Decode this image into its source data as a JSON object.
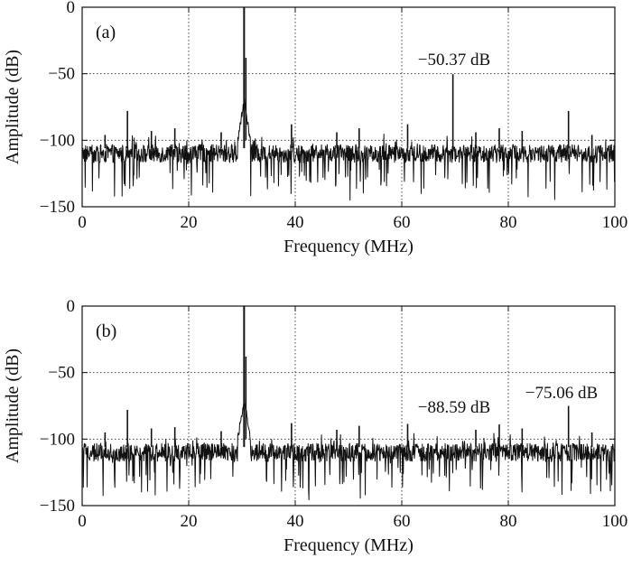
{
  "chart_data": [
    {
      "type": "line",
      "panel_label": "(a)",
      "xlabel": "Frequency (MHz)",
      "ylabel": "Amplitude (dB)",
      "xlim": [
        0,
        100
      ],
      "ylim": [
        -150,
        0
      ],
      "xticks": [
        0,
        20,
        40,
        60,
        80,
        100
      ],
      "yticks": [
        0,
        -50,
        -100,
        -150
      ],
      "grid": true,
      "noise_floor_db": -110,
      "peaks": [
        {
          "x": 30.4,
          "y": 0
        },
        {
          "x": 69.6,
          "y": -50.37
        },
        {
          "x": 8.5,
          "y": -78
        },
        {
          "x": 91.3,
          "y": -78
        },
        {
          "x": 61.1,
          "y": -88
        },
        {
          "x": 39.3,
          "y": -88
        },
        {
          "x": 52.0,
          "y": -91
        },
        {
          "x": 78.3,
          "y": -91
        },
        {
          "x": 17.4,
          "y": -91
        },
        {
          "x": 13.0,
          "y": -93
        },
        {
          "x": 47.8,
          "y": -94
        },
        {
          "x": 82.6,
          "y": -93
        },
        {
          "x": 26.1,
          "y": -94
        },
        {
          "x": 73.9,
          "y": -94
        },
        {
          "x": 4.3,
          "y": -96
        },
        {
          "x": 95.7,
          "y": -96
        }
      ],
      "annotations": [
        {
          "text": "−50.37 dB",
          "x": 69.6,
          "y": -50.37
        }
      ]
    },
    {
      "type": "line",
      "panel_label": "(b)",
      "xlabel": "Frequency (MHz)",
      "ylabel": "Amplitude (dB)",
      "xlim": [
        0,
        100
      ],
      "ylim": [
        -150,
        0
      ],
      "xticks": [
        0,
        20,
        40,
        60,
        80,
        100
      ],
      "yticks": [
        0,
        -50,
        -100,
        -150
      ],
      "grid": true,
      "noise_floor_db": -110,
      "peaks": [
        {
          "x": 30.4,
          "y": 0
        },
        {
          "x": 8.5,
          "y": -78
        },
        {
          "x": 91.3,
          "y": -75.06
        },
        {
          "x": 61.1,
          "y": -88.59
        },
        {
          "x": 39.3,
          "y": -88
        },
        {
          "x": 52.0,
          "y": -90
        },
        {
          "x": 78.3,
          "y": -89
        },
        {
          "x": 17.4,
          "y": -91
        },
        {
          "x": 13.0,
          "y": -92
        },
        {
          "x": 47.8,
          "y": -93
        },
        {
          "x": 82.6,
          "y": -92
        },
        {
          "x": 26.1,
          "y": -94
        },
        {
          "x": 73.9,
          "y": -93
        },
        {
          "x": 4.3,
          "y": -95
        },
        {
          "x": 95.7,
          "y": -95
        }
      ],
      "annotations": [
        {
          "text": "−88.59 dB",
          "x": 61.1,
          "y": -88.59
        },
        {
          "text": "−75.06 dB",
          "x": 91.3,
          "y": -75.06
        }
      ]
    }
  ]
}
